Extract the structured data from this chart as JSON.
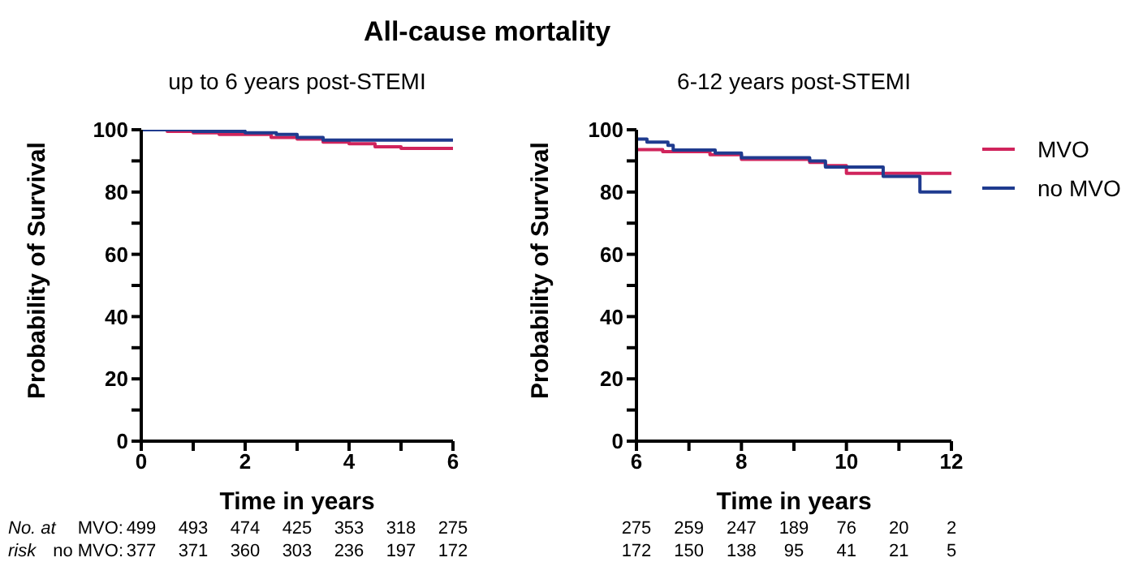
{
  "chart_data": [
    {
      "type": "step",
      "title": "All-cause mortality",
      "subtitle": "up to 6 years post-STEMI",
      "xlabel": "Time in years",
      "ylabel": "Probability of Survival",
      "xlim": [
        0,
        6
      ],
      "ylim": [
        0,
        100
      ],
      "xticks": [
        0,
        {
          "value": 1,
          "label": null
        },
        2,
        {
          "value": 3,
          "label": null
        },
        4,
        {
          "value": 5,
          "label": null
        },
        6
      ],
      "yticks": [
        0,
        {
          "value": 10,
          "label": null
        },
        20,
        {
          "value": 30,
          "label": null
        },
        40,
        {
          "value": 50,
          "label": null
        },
        60,
        {
          "value": 70,
          "label": null
        },
        80,
        {
          "value": 90,
          "label": null
        },
        100
      ],
      "grid": false,
      "legend": false,
      "series": [
        {
          "color": "#d0245c",
          "x": [
            0,
            0.5,
            1,
            1.5,
            2.5,
            3,
            3.5,
            4,
            4.5,
            5,
            6
          ],
          "values": [
            100,
            99.5,
            99,
            98.5,
            97.5,
            97,
            96,
            95.5,
            94.5,
            94,
            94
          ]
        },
        {
          "color": "#1f3b8f",
          "x": [
            0,
            1,
            2,
            2.6,
            3,
            3.5,
            6
          ],
          "values": [
            100,
            99.5,
            99,
            98.5,
            97.5,
            96.7,
            96.7
          ]
        }
      ],
      "annotations": [
        "No. at",
        "risk",
        "MVO:",
        "no MVO:",
        "499",
        "493",
        "474",
        "425",
        "353",
        "318",
        "275",
        "377",
        "371",
        "360",
        "303",
        "236",
        "197",
        "172"
      ]
    },
    {
      "type": "step",
      "subtitle": "6-12 years post-STEMI",
      "xlabel": "Time in years",
      "ylabel": "Probability of Survival",
      "xlim": [
        6,
        12
      ],
      "ylim": [
        0,
        100
      ],
      "xticks": [
        6,
        {
          "value": 7,
          "label": null
        },
        8,
        {
          "value": 9,
          "label": null
        },
        10,
        {
          "value": 11,
          "label": null
        },
        12
      ],
      "yticks": [
        0,
        {
          "value": 10,
          "label": null
        },
        20,
        {
          "value": 30,
          "label": null
        },
        40,
        {
          "value": 50,
          "label": null
        },
        60,
        {
          "value": 70,
          "label": null
        },
        80,
        {
          "value": 90,
          "label": null
        },
        100
      ],
      "grid": false,
      "legend": "right",
      "series": [
        {
          "name": "MVO",
          "color": "#d0245c",
          "x": [
            6,
            6.5,
            7.4,
            8,
            9.3,
            9.6,
            10,
            12
          ],
          "values": [
            93.6,
            93,
            92,
            90.5,
            89.5,
            88.5,
            86,
            86
          ]
        },
        {
          "name": "no MVO",
          "color": "#1f3b8f",
          "x": [
            6,
            6.2,
            6.6,
            6.7,
            7.5,
            8,
            9.3,
            9.6,
            10.7,
            11.4,
            12
          ],
          "values": [
            97,
            96,
            95,
            93.5,
            92.5,
            91,
            90,
            88,
            85,
            80,
            80
          ]
        }
      ],
      "annotations": [
        "275",
        "259",
        "247",
        "189",
        "76",
        "20",
        "2",
        "172",
        "150",
        "138",
        "95",
        "41",
        "21",
        "5"
      ]
    }
  ]
}
